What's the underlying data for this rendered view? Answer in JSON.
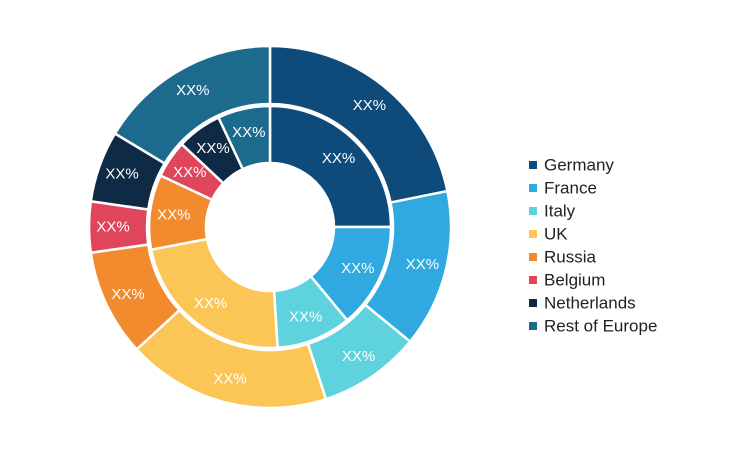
{
  "chart_data": {
    "type": "pie",
    "subtype": "double-donut",
    "title": "",
    "categories": [
      "Germany",
      "France",
      "Italy",
      "UK",
      "Russia",
      "Belgium",
      "Netherlands",
      "Rest of Europe"
    ],
    "colors": [
      "#0e4a7a",
      "#2fa9e0",
      "#5ed2dd",
      "#fcc657",
      "#f28a2e",
      "#e0465b",
      "#0f2a44",
      "#1d6a8f"
    ],
    "rings": [
      {
        "name": "outer",
        "values": [
          24.0,
          15.5,
          10.0,
          20.0,
          10.5,
          5.0,
          7.0,
          18.0
        ]
      },
      {
        "name": "inner",
        "values": [
          25.0,
          14.0,
          10.0,
          23.0,
          10.0,
          5.0,
          6.0,
          7.0
        ]
      }
    ],
    "slice_label": "XX%",
    "legend_position": "right"
  }
}
